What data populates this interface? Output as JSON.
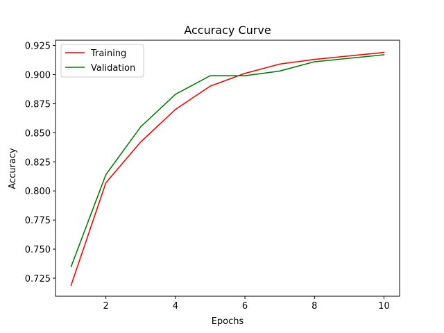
{
  "chart_data": {
    "type": "line",
    "title": "Accuracy Curve",
    "xlabel": "Epochs",
    "ylabel": "Accuracy",
    "xlim": [
      0.55,
      10.45
    ],
    "ylim": [
      0.7095,
      0.9295
    ],
    "xticks": [
      2,
      4,
      6,
      8,
      10
    ],
    "yticks": [
      0.725,
      0.75,
      0.775,
      0.8,
      0.825,
      0.85,
      0.875,
      0.9,
      0.925
    ],
    "ytick_labels": [
      "0.725",
      "0.750",
      "0.775",
      "0.800",
      "0.825",
      "0.850",
      "0.875",
      "0.900",
      "0.925"
    ],
    "grid": false,
    "legend_position": "top-left",
    "x": [
      1,
      2,
      3,
      4,
      5,
      6,
      7,
      8,
      9,
      10
    ],
    "series": [
      {
        "name": "Training",
        "color": "#ff0000",
        "values": [
          0.719,
          0.807,
          0.842,
          0.87,
          0.89,
          0.901,
          0.909,
          0.913,
          0.916,
          0.919
        ]
      },
      {
        "name": "Validation",
        "color": "#008000",
        "values": [
          0.735,
          0.814,
          0.855,
          0.883,
          0.899,
          0.899,
          0.903,
          0.911,
          0.914,
          0.917
        ]
      }
    ]
  }
}
